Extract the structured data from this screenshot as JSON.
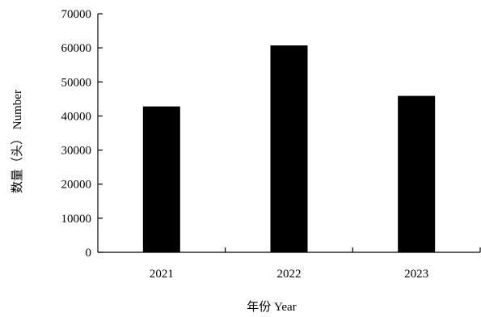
{
  "chart_data": {
    "type": "bar",
    "categories": [
      "2021",
      "2022",
      "2023"
    ],
    "values": [
      42800,
      60700,
      45900
    ],
    "xlabel": "年份 Year",
    "ylabel": "数量（头） Number",
    "ylim": [
      0,
      70000
    ],
    "yticks": [
      0,
      10000,
      20000,
      30000,
      40000,
      50000,
      60000,
      70000
    ],
    "grid": false,
    "legend": "none",
    "bar_color": "#000000"
  }
}
